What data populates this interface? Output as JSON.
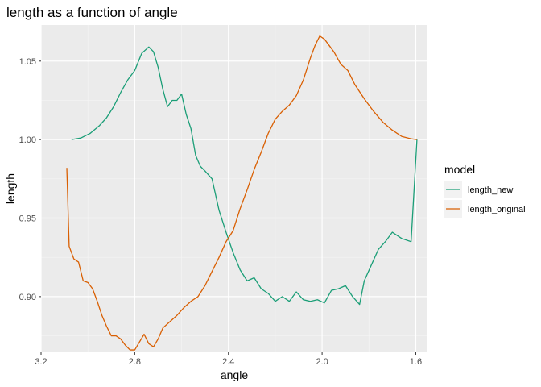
{
  "chart_data": {
    "type": "line",
    "title": "length as a function of angle",
    "xlabel": "angle",
    "ylabel": "length",
    "x_reversed": true,
    "xlim": [
      3.2,
      1.55
    ],
    "ylim": [
      0.8645,
      1.073
    ],
    "x_ticks": [
      3.2,
      2.8,
      2.4,
      2.0,
      1.6
    ],
    "x_tick_labels": [
      "3.2",
      "2.8",
      "2.4",
      "2.0",
      "1.6"
    ],
    "y_ticks": [
      0.9,
      0.95,
      1.0,
      1.05
    ],
    "y_tick_labels": [
      "0.90",
      "0.95",
      "1.00",
      "1.05"
    ],
    "grid": true,
    "legend": {
      "title": "model",
      "position": "right"
    },
    "series": [
      {
        "name": "length_new",
        "color": "#1b9e77",
        "points": [
          [
            3.07,
            1.0
          ],
          [
            3.03,
            1.001
          ],
          [
            2.99,
            1.004
          ],
          [
            2.95,
            1.009
          ],
          [
            2.92,
            1.014
          ],
          [
            2.89,
            1.021
          ],
          [
            2.86,
            1.03
          ],
          [
            2.83,
            1.038
          ],
          [
            2.8,
            1.044
          ],
          [
            2.77,
            1.055
          ],
          [
            2.74,
            1.059
          ],
          [
            2.72,
            1.056
          ],
          [
            2.7,
            1.046
          ],
          [
            2.68,
            1.032
          ],
          [
            2.66,
            1.021
          ],
          [
            2.64,
            1.025
          ],
          [
            2.62,
            1.025
          ],
          [
            2.6,
            1.029
          ],
          [
            2.58,
            1.016
          ],
          [
            2.56,
            1.007
          ],
          [
            2.54,
            0.99
          ],
          [
            2.52,
            0.983
          ],
          [
            2.5,
            0.98
          ],
          [
            2.47,
            0.975
          ],
          [
            2.44,
            0.955
          ],
          [
            2.41,
            0.941
          ],
          [
            2.38,
            0.928
          ],
          [
            2.35,
            0.917
          ],
          [
            2.32,
            0.91
          ],
          [
            2.29,
            0.912
          ],
          [
            2.26,
            0.905
          ],
          [
            2.23,
            0.902
          ],
          [
            2.2,
            0.897
          ],
          [
            2.17,
            0.9
          ],
          [
            2.14,
            0.897
          ],
          [
            2.11,
            0.903
          ],
          [
            2.08,
            0.898
          ],
          [
            2.05,
            0.897
          ],
          [
            2.02,
            0.898
          ],
          [
            1.99,
            0.896
          ],
          [
            1.96,
            0.904
          ],
          [
            1.93,
            0.905
          ],
          [
            1.9,
            0.907
          ],
          [
            1.87,
            0.9
          ],
          [
            1.84,
            0.895
          ],
          [
            1.82,
            0.91
          ],
          [
            1.79,
            0.92
          ],
          [
            1.76,
            0.93
          ],
          [
            1.73,
            0.935
          ],
          [
            1.7,
            0.941
          ],
          [
            1.66,
            0.937
          ],
          [
            1.62,
            0.935
          ],
          [
            1.595,
            1.0
          ]
        ]
      },
      {
        "name": "length_original",
        "color": "#d95f02",
        "points": [
          [
            3.09,
            0.982
          ],
          [
            3.08,
            0.932
          ],
          [
            3.06,
            0.924
          ],
          [
            3.04,
            0.922
          ],
          [
            3.02,
            0.91
          ],
          [
            3.0,
            0.909
          ],
          [
            2.98,
            0.905
          ],
          [
            2.96,
            0.897
          ],
          [
            2.94,
            0.888
          ],
          [
            2.92,
            0.881
          ],
          [
            2.9,
            0.875
          ],
          [
            2.88,
            0.875
          ],
          [
            2.86,
            0.873
          ],
          [
            2.84,
            0.869
          ],
          [
            2.82,
            0.866
          ],
          [
            2.8,
            0.866
          ],
          [
            2.78,
            0.871
          ],
          [
            2.76,
            0.876
          ],
          [
            2.74,
            0.87
          ],
          [
            2.72,
            0.868
          ],
          [
            2.7,
            0.873
          ],
          [
            2.68,
            0.88
          ],
          [
            2.65,
            0.884
          ],
          [
            2.62,
            0.888
          ],
          [
            2.59,
            0.893
          ],
          [
            2.56,
            0.897
          ],
          [
            2.53,
            0.9
          ],
          [
            2.5,
            0.907
          ],
          [
            2.47,
            0.916
          ],
          [
            2.44,
            0.925
          ],
          [
            2.41,
            0.935
          ],
          [
            2.38,
            0.942
          ],
          [
            2.35,
            0.956
          ],
          [
            2.32,
            0.968
          ],
          [
            2.29,
            0.981
          ],
          [
            2.26,
            0.992
          ],
          [
            2.23,
            1.004
          ],
          [
            2.2,
            1.013
          ],
          [
            2.17,
            1.018
          ],
          [
            2.14,
            1.022
          ],
          [
            2.11,
            1.028
          ],
          [
            2.08,
            1.038
          ],
          [
            2.05,
            1.052
          ],
          [
            2.03,
            1.06
          ],
          [
            2.01,
            1.066
          ],
          [
            1.99,
            1.064
          ],
          [
            1.97,
            1.06
          ],
          [
            1.95,
            1.056
          ],
          [
            1.92,
            1.048
          ],
          [
            1.89,
            1.044
          ],
          [
            1.86,
            1.035
          ],
          [
            1.82,
            1.026
          ],
          [
            1.78,
            1.018
          ],
          [
            1.74,
            1.011
          ],
          [
            1.7,
            1.006
          ],
          [
            1.66,
            1.002
          ],
          [
            1.62,
            1.0005
          ],
          [
            1.595,
            1.0
          ]
        ]
      }
    ]
  }
}
